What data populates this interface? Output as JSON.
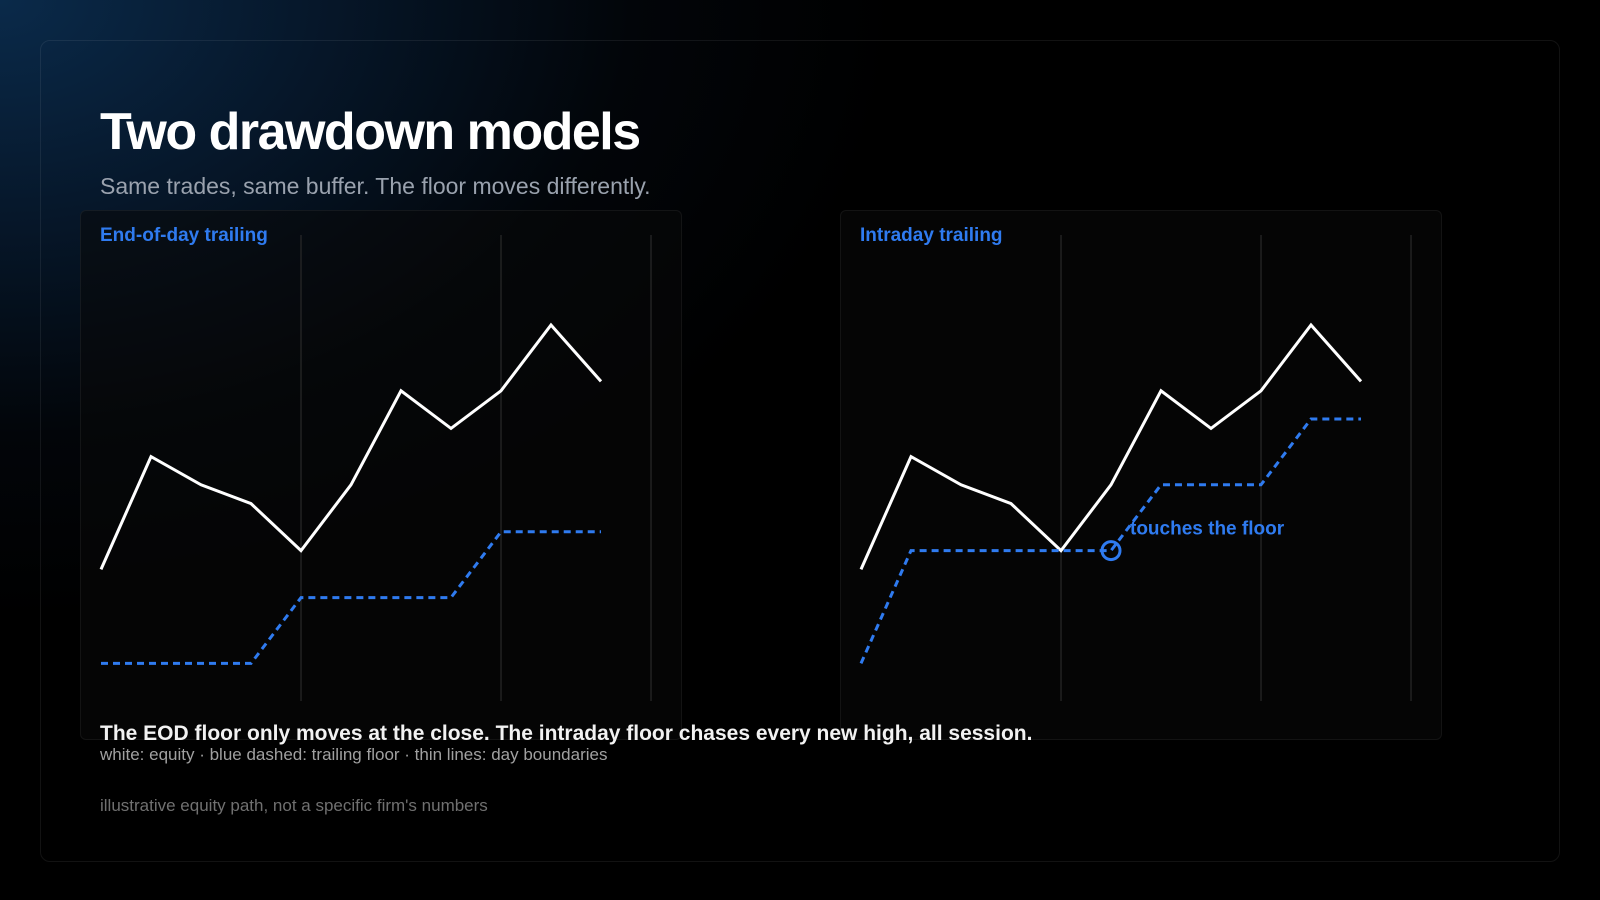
{
  "header": {
    "title": "Two drawdown models",
    "subtitle": "Same trades, same buffer. The floor moves differently."
  },
  "footer": {
    "caption": "The EOD floor only moves at the close. The intraday floor chases every new high, all session.",
    "legend": "white: equity · blue dashed: trailing floor · thin lines: day boundaries",
    "footnote": "illustrative equity path, not a specific firm's numbers"
  },
  "colors": {
    "equity": "#ffffff",
    "floor": "#2f7bf0",
    "day_boundary": "#2a2a2a",
    "accent": "#2f7bf0"
  },
  "chart_data": [
    {
      "type": "line",
      "title": "End-of-day trailing",
      "x": [
        0,
        1,
        2,
        3,
        4,
        5,
        6,
        7,
        8,
        9,
        10,
        11
      ],
      "xlim": [
        0,
        11
      ],
      "ylim": [
        0,
        100
      ],
      "day_boundaries": [
        4,
        8,
        11
      ],
      "grid": false,
      "series": [
        {
          "role": "equity",
          "style": "solid",
          "values": [
            28,
            52,
            46,
            42,
            32,
            46,
            66,
            58,
            66,
            80,
            68,
            null
          ]
        },
        {
          "role": "floor",
          "style": "dashed",
          "values": [
            8,
            8,
            8,
            8,
            22,
            22,
            22,
            22,
            36,
            36,
            36,
            null
          ]
        }
      ],
      "annotations": []
    },
    {
      "type": "line",
      "title": "Intraday trailing",
      "x": [
        0,
        1,
        2,
        3,
        4,
        5,
        6,
        7,
        8,
        9,
        10,
        11
      ],
      "xlim": [
        0,
        11
      ],
      "ylim": [
        0,
        100
      ],
      "day_boundaries": [
        4,
        8,
        11
      ],
      "grid": false,
      "series": [
        {
          "role": "equity",
          "style": "solid",
          "values": [
            28,
            52,
            46,
            42,
            32,
            46,
            66,
            58,
            66,
            80,
            68,
            null
          ]
        },
        {
          "role": "floor",
          "style": "dashed",
          "values": [
            8,
            32,
            32,
            32,
            32,
            32,
            46,
            46,
            46,
            60,
            60,
            null
          ]
        }
      ],
      "annotations": [
        {
          "x": 5,
          "y": 32,
          "text": "touches the floor"
        }
      ]
    }
  ]
}
